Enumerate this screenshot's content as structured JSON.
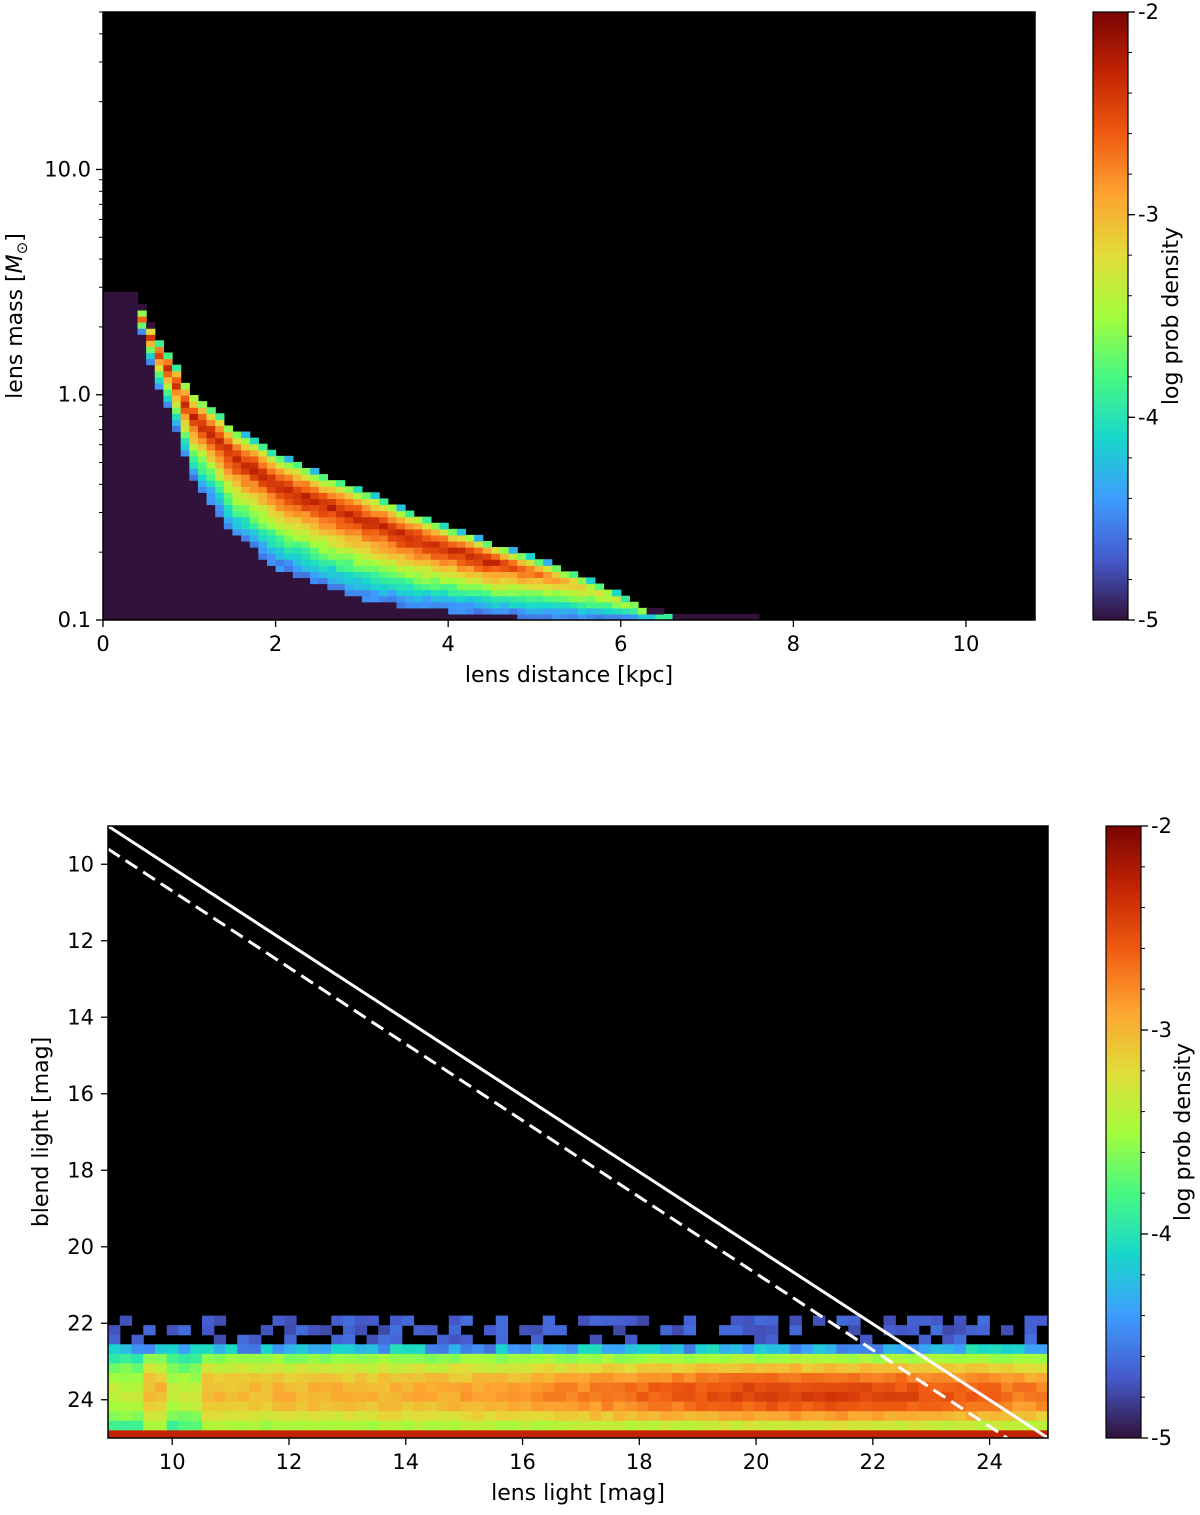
{
  "chart_data": [
    {
      "type": "heatmap",
      "xlabel": "lens distance [kpc]",
      "ylabel_prefix": "lens mass [",
      "ylabel_symbol": "M",
      "ylabel_sub": "⊙",
      "ylabel_suffix": "]",
      "xlim": [
        0,
        10.8
      ],
      "ylim": [
        0.1,
        50
      ],
      "yscale": "log",
      "xticks": [
        0,
        2,
        4,
        6,
        8,
        10
      ],
      "xtick_labels": [
        "0",
        "2",
        "4",
        "6",
        "8",
        "10"
      ],
      "yticks": [
        0.1,
        1.0,
        10.0
      ],
      "ytick_labels": [
        "0.1",
        "1.0",
        "10.0"
      ],
      "colorbar": {
        "label": "log prob density",
        "range": [
          -5,
          -2
        ],
        "ticks": [
          -2,
          -3,
          -4,
          -5
        ],
        "tick_labels": [
          "-2",
          "-3",
          "-4",
          "-5"
        ],
        "colormap": "turbo"
      },
      "density_ridge": {
        "x": [
          0.4,
          0.6,
          1.0,
          1.5,
          2.0,
          2.5,
          3.0,
          3.5,
          4.0,
          4.5,
          5.0,
          5.5,
          6.0,
          6.4
        ],
        "mass_upper": [
          2.5,
          1.8,
          1.05,
          0.72,
          0.55,
          0.45,
          0.38,
          0.31,
          0.26,
          0.22,
          0.19,
          0.16,
          0.13,
          0.105
        ],
        "mass_lower": [
          2.2,
          1.2,
          0.45,
          0.25,
          0.18,
          0.15,
          0.13,
          0.12,
          0.115,
          0.11,
          0.107,
          0.104,
          0.102,
          0.1
        ],
        "peak_value": -2.3,
        "background_value": -5,
        "background_extent_kpc": 8
      }
    },
    {
      "type": "heatmap",
      "xlabel": "lens light [mag]",
      "ylabel": "blend light [mag]",
      "xlim": [
        8.9,
        25
      ],
      "ylim": [
        25,
        9.0
      ],
      "xticks": [
        10,
        12,
        14,
        16,
        18,
        20,
        22,
        24
      ],
      "xtick_labels": [
        "10",
        "12",
        "14",
        "16",
        "18",
        "20",
        "22",
        "24"
      ],
      "yticks": [
        10,
        12,
        14,
        16,
        18,
        20,
        22,
        24
      ],
      "ytick_labels": [
        "10",
        "12",
        "14",
        "16",
        "18",
        "20",
        "22",
        "24"
      ],
      "colorbar": {
        "label": "log prob density",
        "range": [
          -5,
          -2
        ],
        "ticks": [
          -2,
          -3,
          -4,
          -5
        ],
        "tick_labels": [
          "-2",
          "-3",
          "-4",
          "-5"
        ],
        "colormap": "turbo"
      },
      "density_band": {
        "blend_range": [
          22.8,
          25.0
        ],
        "sparse_range": [
          21.8,
          22.8
        ],
        "peak_lens_light": 21,
        "peak_value": -2.5
      },
      "lines": [
        {
          "style": "solid",
          "color": "#ffffff",
          "x": [
            8.9,
            25
          ],
          "y": [
            9.0,
            25.0
          ]
        },
        {
          "style": "dashed",
          "color": "#ffffff",
          "x": [
            8.9,
            24.3
          ],
          "y": [
            9.6,
            25.0
          ]
        }
      ]
    }
  ]
}
